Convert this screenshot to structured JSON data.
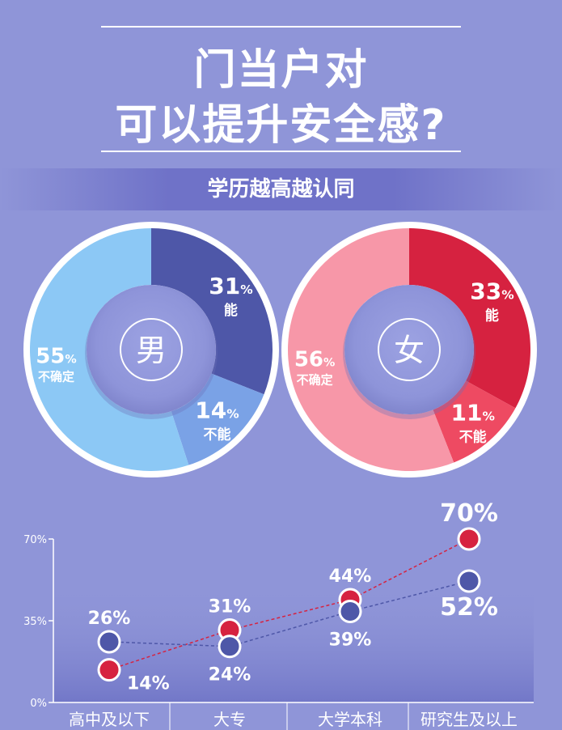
{
  "title": {
    "line1": "门当户对",
    "line2": "可以提升安全感?"
  },
  "subtitle": "学历越高越认同",
  "colors": {
    "background": "#8f95d8",
    "male_yes": "#4e57a8",
    "male_no": "#7aa2e6",
    "male_unsure": "#8cc8f5",
    "female_yes": "#d62240",
    "female_no": "#ee4a62",
    "female_unsure": "#f797a8",
    "male_line": "#4e57a8",
    "female_line": "#d62240"
  },
  "chart_data": [
    {
      "type": "pie",
      "center_label": "男",
      "slices": [
        {
          "label": "能",
          "value": 31
        },
        {
          "label": "不能",
          "value": 14
        },
        {
          "label": "不确定",
          "value": 55
        }
      ],
      "value_suffix": "%"
    },
    {
      "type": "pie",
      "center_label": "女",
      "slices": [
        {
          "label": "能",
          "value": 33
        },
        {
          "label": "不能",
          "value": 11
        },
        {
          "label": "不确定",
          "value": 56
        }
      ],
      "value_suffix": "%"
    },
    {
      "type": "line",
      "categories": [
        "高中及以下",
        "大专",
        "大学本科",
        "研究生及以上"
      ],
      "series": [
        {
          "values": [
            14,
            31,
            44,
            70
          ]
        },
        {
          "values": [
            26,
            24,
            39,
            52
          ]
        }
      ],
      "y_ticks": [
        "0%",
        "35%",
        "70%"
      ],
      "ylim": [
        0,
        70
      ],
      "value_suffix": "%"
    }
  ]
}
